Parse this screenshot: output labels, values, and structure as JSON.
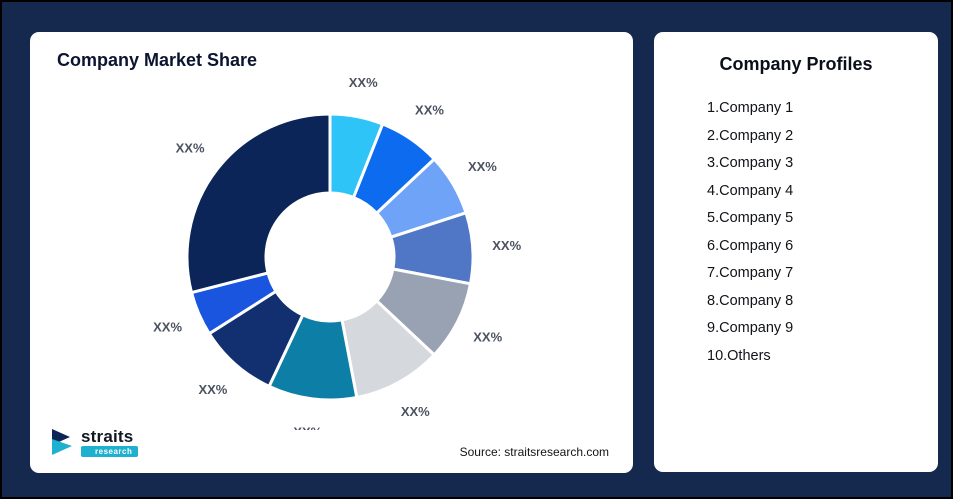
{
  "page": {
    "background": "#15294e"
  },
  "left_card": {
    "title": "Company Market Share",
    "source": "Source: straitsresearch.com"
  },
  "logo": {
    "name": "straits",
    "sub": "research",
    "accent_color": "#1db0cf",
    "dark_color": "#0b2559"
  },
  "right_card": {
    "title": "Company Profiles",
    "items": [
      "1.Company 1",
      "2.Company 2",
      "3.Company 3",
      "4.Company 4",
      "5.Company 5",
      "6.Company 6",
      "7.Company 7",
      "8.Company 8",
      "9.Company 9",
      "10.Others"
    ]
  },
  "chart_data": {
    "type": "pie",
    "subtype": "donut",
    "title": "Company Market Share",
    "categories": [
      "Company 1",
      "Company 2",
      "Company 3",
      "Company 4",
      "Company 5",
      "Company 6",
      "Company 7",
      "Company 8",
      "Company 9",
      "Others"
    ],
    "values": [
      6,
      7,
      7,
      8,
      9,
      10,
      10,
      9,
      5,
      29
    ],
    "value_labels": [
      "XX%",
      "XX%",
      "XX%",
      "XX%",
      "XX%",
      "XX%",
      "XX%",
      "XX%",
      "XX%",
      "XX%"
    ],
    "colors": [
      "#2fc4f7",
      "#0d6bf0",
      "#6fa3f7",
      "#4f77c6",
      "#98a2b3",
      "#d5d9de",
      "#0d7fa6",
      "#12306f",
      "#1a55e0",
      "#0b2559"
    ],
    "source": "Source: straitsresearch.com",
    "legend_position": "none",
    "start_angle_deg": 0,
    "inner_radius_ratio": 0.45
  }
}
